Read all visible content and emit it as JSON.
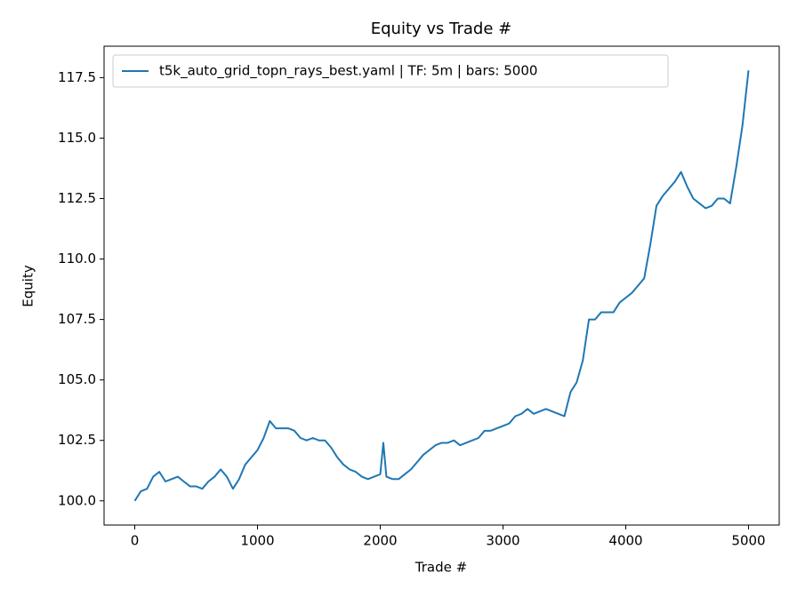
{
  "chart_data": {
    "type": "line",
    "title": "Equity vs Trade #",
    "xlabel": "Trade #",
    "ylabel": "Equity",
    "x": [
      0,
      50,
      100,
      150,
      200,
      250,
      300,
      350,
      400,
      450,
      500,
      550,
      600,
      650,
      700,
      750,
      800,
      850,
      900,
      950,
      1000,
      1050,
      1100,
      1150,
      1200,
      1250,
      1300,
      1350,
      1400,
      1450,
      1500,
      1550,
      1600,
      1650,
      1700,
      1750,
      1800,
      1850,
      1900,
      1950,
      2000,
      2025,
      2050,
      2100,
      2150,
      2200,
      2250,
      2300,
      2350,
      2400,
      2450,
      2500,
      2550,
      2600,
      2650,
      2700,
      2750,
      2800,
      2850,
      2900,
      2950,
      3000,
      3050,
      3100,
      3150,
      3200,
      3250,
      3300,
      3350,
      3400,
      3450,
      3500,
      3550,
      3600,
      3650,
      3700,
      3750,
      3800,
      3850,
      3900,
      3950,
      4000,
      4050,
      4100,
      4150,
      4200,
      4250,
      4300,
      4350,
      4400,
      4450,
      4500,
      4550,
      4600,
      4650,
      4700,
      4750,
      4800,
      4850,
      4900,
      4950,
      5000
    ],
    "series": [
      {
        "name": "t5k_auto_grid_topn_rays_best.yaml | TF: 5m | bars: 5000",
        "color": "#1f77b4",
        "values": [
          100.0,
          100.4,
          100.5,
          101.0,
          101.2,
          100.8,
          100.9,
          101.0,
          100.8,
          100.6,
          100.6,
          100.5,
          100.8,
          101.0,
          101.3,
          101.0,
          100.5,
          100.9,
          101.5,
          101.8,
          102.1,
          102.6,
          103.3,
          103.0,
          103.0,
          103.0,
          102.9,
          102.6,
          102.5,
          102.6,
          102.5,
          102.5,
          102.2,
          101.8,
          101.5,
          101.3,
          101.2,
          101.0,
          100.9,
          101.0,
          101.1,
          102.4,
          101.0,
          100.9,
          100.9,
          101.1,
          101.3,
          101.6,
          101.9,
          102.1,
          102.3,
          102.4,
          102.4,
          102.5,
          102.3,
          102.4,
          102.5,
          102.6,
          102.9,
          102.9,
          103.0,
          103.1,
          103.2,
          103.5,
          103.6,
          103.8,
          103.6,
          103.7,
          103.8,
          103.7,
          103.6,
          103.5,
          104.5,
          104.9,
          105.8,
          107.5,
          107.5,
          107.8,
          107.8,
          107.8,
          108.2,
          108.4,
          108.6,
          108.9,
          109.2,
          110.6,
          112.2,
          112.6,
          112.9,
          113.2,
          113.6,
          113.0,
          112.5,
          112.3,
          112.1,
          112.2,
          112.5,
          112.5,
          112.3,
          113.8,
          115.5,
          117.8
        ]
      }
    ],
    "xlim": [
      -250,
      5250
    ],
    "ylim": [
      99.0,
      118.8
    ],
    "xticks": [
      0,
      1000,
      2000,
      3000,
      4000,
      5000
    ],
    "yticks": [
      {
        "value": 100,
        "label": "100.0"
      },
      102.5,
      {
        "value": 105,
        "label": "105.0"
      },
      107.5,
      {
        "value": 110,
        "label": "110.0"
      },
      112.5,
      {
        "value": 115,
        "label": "115.0"
      },
      117.5
    ],
    "legend": "upper left",
    "grid": false
  }
}
